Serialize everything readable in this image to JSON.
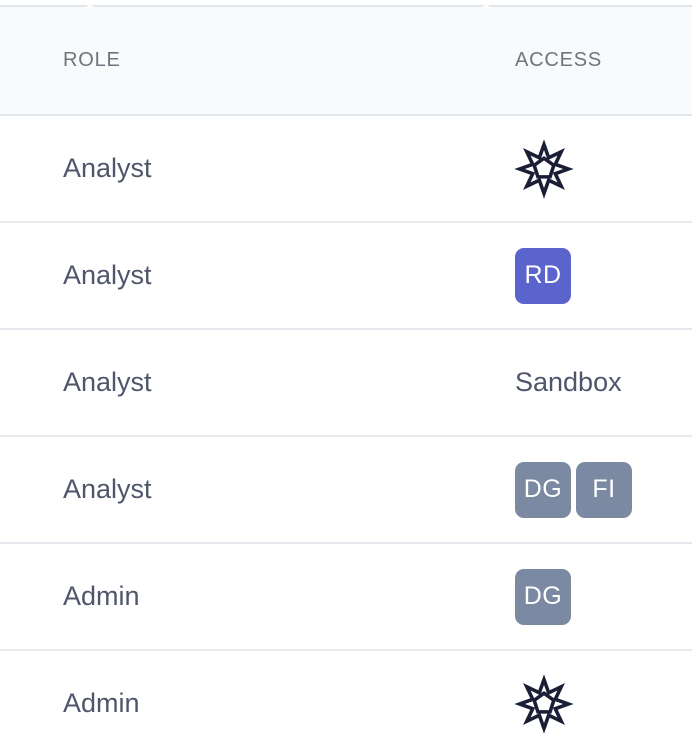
{
  "header": {
    "columns": [
      {
        "id": "role",
        "label": "ROLE"
      },
      {
        "id": "access",
        "label": "ACCESS"
      }
    ]
  },
  "rows": [
    {
      "role": "Analyst",
      "access": {
        "type": "icon",
        "icon": "star-seal-icon"
      }
    },
    {
      "role": "Analyst",
      "access": {
        "type": "badges",
        "badges": [
          {
            "label": "RD",
            "color": "#5b63cd"
          }
        ]
      }
    },
    {
      "role": "Analyst",
      "access": {
        "type": "text",
        "text": "Sandbox"
      }
    },
    {
      "role": "Analyst",
      "access": {
        "type": "badges",
        "badges": [
          {
            "label": "DG",
            "color": "#7b8aa2"
          },
          {
            "label": "FI",
            "color": "#7b8aa2"
          }
        ]
      }
    },
    {
      "role": "Admin",
      "access": {
        "type": "badges",
        "badges": [
          {
            "label": "DG",
            "color": "#7b8aa2"
          }
        ]
      }
    },
    {
      "role": "Admin",
      "access": {
        "type": "icon",
        "icon": "star-seal-icon"
      }
    }
  ],
  "colors": {
    "badge_purple": "#5b63cd",
    "badge_slate": "#7b8aa2",
    "icon_dark": "#1a1f36",
    "header_bg": "#f8fafb",
    "header_text": "#6f747e",
    "body_text": "#4f566b",
    "divider": "#e6eaee"
  }
}
